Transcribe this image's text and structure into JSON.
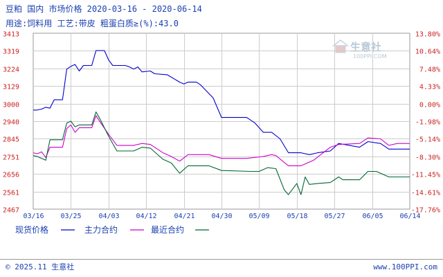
{
  "header": {
    "line1": "豆粕 国内 市场价格  2020-03-16 - 2020-06-14",
    "line2": "用途:饲料用 工艺:带皮 粗蛋白质≥(%):43.0"
  },
  "watermark": {
    "brand": "生意社",
    "url": "100PPI.COM"
  },
  "footer": {
    "copyright": "© 2025.11 生意社",
    "site": "www.100PPI.com"
  },
  "colors": {
    "spot": "#0000cc",
    "main": "#cc00cc",
    "recent": "#006633",
    "axis_text": "#cc2222",
    "grid": "#cccccc",
    "text": "#1a3fb0"
  },
  "chart_data": {
    "type": "line",
    "x_ticks": [
      "03/16",
      "03/25",
      "04/03",
      "04/12",
      "04/21",
      "04/30",
      "05/09",
      "05/18",
      "05/27",
      "06/05",
      "06/14"
    ],
    "x_range": [
      "2020-03-16",
      "2020-06-14"
    ],
    "y_left": {
      "ticks": [
        "3413",
        "3319",
        "3224",
        "3129",
        "3000",
        "2940",
        "2845",
        "2751",
        "2656",
        "2561",
        "2467"
      ],
      "range": [
        2467,
        3413
      ]
    },
    "y_right": {
      "ticks": [
        "13.80%",
        "10.64%",
        "7.48%",
        "4.33%",
        "0.00%",
        "-1.98%",
        "-5.14%",
        "-8.30%",
        "-11.45%",
        "-14.61%",
        "-17.76%"
      ]
    },
    "grid": true,
    "legend_position": "bottom-left",
    "series": [
      {
        "name": "现货价格",
        "key": "spot",
        "points": [
          [
            "2020-03-16",
            3000
          ],
          [
            "2020-03-17",
            3000
          ],
          [
            "2020-03-18",
            3005
          ],
          [
            "2020-03-19",
            3015
          ],
          [
            "2020-03-20",
            3010
          ],
          [
            "2020-03-21",
            3055
          ],
          [
            "2020-03-23",
            3055
          ],
          [
            "2020-03-24",
            3220
          ],
          [
            "2020-03-25",
            3235
          ],
          [
            "2020-03-26",
            3245
          ],
          [
            "2020-03-27",
            3210
          ],
          [
            "2020-03-28",
            3240
          ],
          [
            "2020-03-30",
            3240
          ],
          [
            "2020-03-31",
            3320
          ],
          [
            "2020-04-02",
            3320
          ],
          [
            "2020-04-03",
            3270
          ],
          [
            "2020-04-04",
            3240
          ],
          [
            "2020-04-07",
            3240
          ],
          [
            "2020-04-08",
            3232
          ],
          [
            "2020-04-09",
            3220
          ],
          [
            "2020-04-10",
            3232
          ],
          [
            "2020-04-11",
            3205
          ],
          [
            "2020-04-13",
            3210
          ],
          [
            "2020-04-14",
            3195
          ],
          [
            "2020-04-17",
            3190
          ],
          [
            "2020-04-20",
            3150
          ],
          [
            "2020-04-21",
            3140
          ],
          [
            "2020-04-22",
            3150
          ],
          [
            "2020-04-24",
            3150
          ],
          [
            "2020-04-25",
            3135
          ],
          [
            "2020-04-28",
            3065
          ],
          [
            "2020-04-30",
            2960
          ],
          [
            "2020-05-06",
            2960
          ],
          [
            "2020-05-08",
            2930
          ],
          [
            "2020-05-10",
            2880
          ],
          [
            "2020-05-12",
            2880
          ],
          [
            "2020-05-14",
            2845
          ],
          [
            "2020-05-16",
            2770
          ],
          [
            "2020-05-19",
            2770
          ],
          [
            "2020-05-21",
            2760
          ],
          [
            "2020-05-23",
            2770
          ],
          [
            "2020-05-26",
            2780
          ],
          [
            "2020-05-28",
            2820
          ],
          [
            "2020-06-02",
            2800
          ],
          [
            "2020-06-04",
            2830
          ],
          [
            "2020-06-07",
            2820
          ],
          [
            "2020-06-09",
            2790
          ],
          [
            "2020-06-14",
            2790
          ]
        ]
      },
      {
        "name": "主力合约",
        "key": "main",
        "points": [
          [
            "2020-03-16",
            2770
          ],
          [
            "2020-03-17",
            2765
          ],
          [
            "2020-03-18",
            2775
          ],
          [
            "2020-03-19",
            2745
          ],
          [
            "2020-03-20",
            2800
          ],
          [
            "2020-03-23",
            2800
          ],
          [
            "2020-03-24",
            2900
          ],
          [
            "2020-03-25",
            2920
          ],
          [
            "2020-03-26",
            2880
          ],
          [
            "2020-03-27",
            2905
          ],
          [
            "2020-03-30",
            2905
          ],
          [
            "2020-03-31",
            2970
          ],
          [
            "2020-04-01",
            2935
          ],
          [
            "2020-04-03",
            2870
          ],
          [
            "2020-04-05",
            2810
          ],
          [
            "2020-04-09",
            2810
          ],
          [
            "2020-04-11",
            2820
          ],
          [
            "2020-04-13",
            2815
          ],
          [
            "2020-04-16",
            2770
          ],
          [
            "2020-04-18",
            2750
          ],
          [
            "2020-04-20",
            2725
          ],
          [
            "2020-04-22",
            2760
          ],
          [
            "2020-04-27",
            2760
          ],
          [
            "2020-04-30",
            2740
          ],
          [
            "2020-05-06",
            2740
          ],
          [
            "2020-05-10",
            2750
          ],
          [
            "2020-05-12",
            2760
          ],
          [
            "2020-05-13",
            2755
          ],
          [
            "2020-05-16",
            2700
          ],
          [
            "2020-05-19",
            2700
          ],
          [
            "2020-05-22",
            2730
          ],
          [
            "2020-05-26",
            2800
          ],
          [
            "2020-05-28",
            2815
          ],
          [
            "2020-06-02",
            2820
          ],
          [
            "2020-06-04",
            2850
          ],
          [
            "2020-06-07",
            2845
          ],
          [
            "2020-06-09",
            2810
          ],
          [
            "2020-06-11",
            2820
          ],
          [
            "2020-06-14",
            2820
          ]
        ]
      },
      {
        "name": "最近合约",
        "key": "recent",
        "points": [
          [
            "2020-03-16",
            2755
          ],
          [
            "2020-03-17",
            2750
          ],
          [
            "2020-03-19",
            2730
          ],
          [
            "2020-03-20",
            2840
          ],
          [
            "2020-03-23",
            2840
          ],
          [
            "2020-03-24",
            2930
          ],
          [
            "2020-03-25",
            2940
          ],
          [
            "2020-03-26",
            2910
          ],
          [
            "2020-03-27",
            2920
          ],
          [
            "2020-03-30",
            2920
          ],
          [
            "2020-03-31",
            2990
          ],
          [
            "2020-04-01",
            2950
          ],
          [
            "2020-04-03",
            2860
          ],
          [
            "2020-04-05",
            2780
          ],
          [
            "2020-04-09",
            2780
          ],
          [
            "2020-04-11",
            2800
          ],
          [
            "2020-04-13",
            2795
          ],
          [
            "2020-04-16",
            2735
          ],
          [
            "2020-04-18",
            2715
          ],
          [
            "2020-04-20",
            2660
          ],
          [
            "2020-04-22",
            2700
          ],
          [
            "2020-04-27",
            2700
          ],
          [
            "2020-04-30",
            2675
          ],
          [
            "2020-05-07",
            2670
          ],
          [
            "2020-05-09",
            2670
          ],
          [
            "2020-05-11",
            2690
          ],
          [
            "2020-05-13",
            2685
          ],
          [
            "2020-05-15",
            2570
          ],
          [
            "2020-05-16",
            2545
          ],
          [
            "2020-05-18",
            2605
          ],
          [
            "2020-05-19",
            2545
          ],
          [
            "2020-05-20",
            2640
          ],
          [
            "2020-05-21",
            2600
          ],
          [
            "2020-05-23",
            2605
          ],
          [
            "2020-05-26",
            2610
          ],
          [
            "2020-05-28",
            2640
          ],
          [
            "2020-05-29",
            2625
          ],
          [
            "2020-06-02",
            2625
          ],
          [
            "2020-06-04",
            2670
          ],
          [
            "2020-06-06",
            2670
          ],
          [
            "2020-06-09",
            2640
          ],
          [
            "2020-06-14",
            2640
          ]
        ]
      }
    ]
  }
}
